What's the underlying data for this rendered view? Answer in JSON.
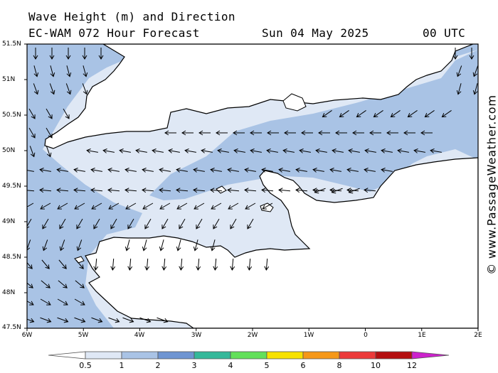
{
  "header": {
    "title_line1": "Wave Height (m) and Direction",
    "title_line2": "EC-WAM 072 Hour Forecast",
    "date": "Sun 04 May 2025",
    "time": "00 UTC"
  },
  "credit": "© www.PassageWeather.com",
  "lat_labels": [
    "51.5N",
    "51N",
    "50.5N",
    "50N",
    "49.5N",
    "49N",
    "48.5N",
    "48N",
    "47.5N"
  ],
  "lon_labels": [
    "6W",
    "5W",
    "4W",
    "3W",
    "2W",
    "1W",
    "0",
    "1E",
    "2E"
  ],
  "legend": {
    "labels": [
      "0.5",
      "1",
      "2",
      "3",
      "4",
      "5",
      "6",
      "8",
      "10",
      "12"
    ],
    "colors": [
      "#ffffff",
      "#dfe8f5",
      "#a9c3e5",
      "#6f95d2",
      "#35b89a",
      "#63e05a",
      "#f7e200",
      "#f59818",
      "#ec3a3a",
      "#b40f10",
      "#cc22cc"
    ]
  },
  "map": {
    "land_color": "#ffffff",
    "wave_colors": {
      "light": "#dfe8f5",
      "medium": "#a9c3e5"
    }
  }
}
